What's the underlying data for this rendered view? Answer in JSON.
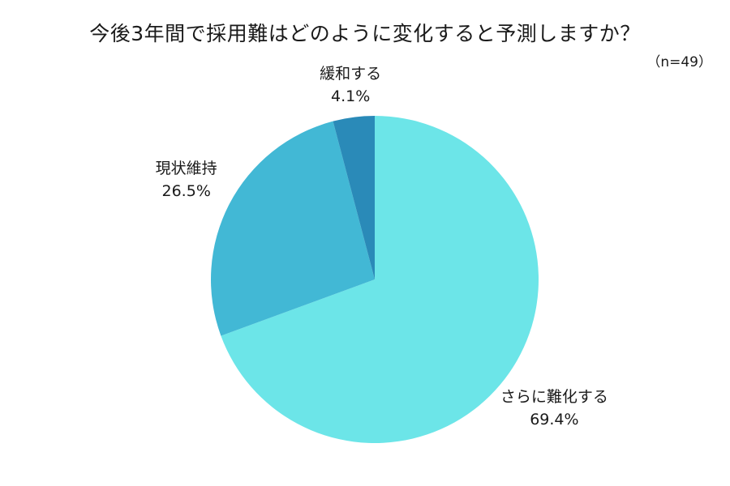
{
  "chart_data": {
    "type": "pie",
    "title": "今後3年間で採用難はどのように変化すると予測しますか？",
    "sample_size": "（n=49）",
    "slices": [
      {
        "label": "さらに難化する",
        "value": 69.4,
        "value_label": "69.4%",
        "color": "#6ce5e8"
      },
      {
        "label": "現状維持",
        "value": 26.5,
        "value_label": "26.5%",
        "color": "#42b8d5"
      },
      {
        "label": "緩和する",
        "value": 4.1,
        "value_label": "4.1%",
        "color": "#2a8ab8"
      }
    ]
  }
}
